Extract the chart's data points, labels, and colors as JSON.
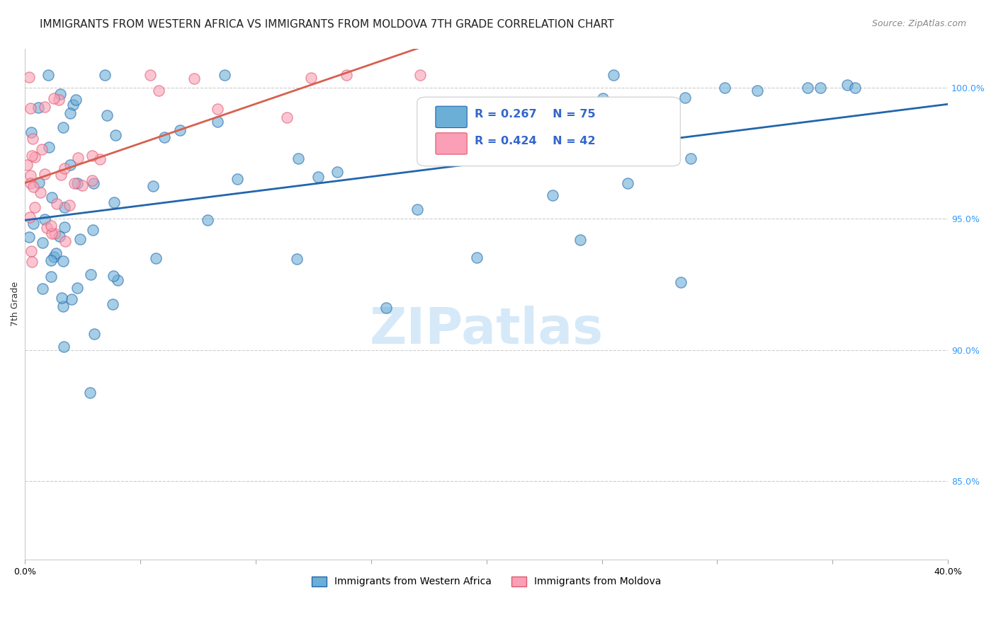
{
  "title": "IMMIGRANTS FROM WESTERN AFRICA VS IMMIGRANTS FROM MOLDOVA 7TH GRADE CORRELATION CHART",
  "source": "Source: ZipAtlas.com",
  "ylabel": "7th Grade",
  "xlabel_blue": "Immigrants from Western Africa",
  "xlabel_pink": "Immigrants from Moldova",
  "legend_blue_r": "R = 0.267",
  "legend_blue_n": "N = 75",
  "legend_pink_r": "R = 0.424",
  "legend_pink_n": "N = 42",
  "color_blue": "#6baed6",
  "color_pink": "#fa9fb5",
  "line_blue": "#2166ac",
  "line_pink": "#d6604d",
  "xmin": 0.0,
  "xmax": 0.4,
  "ymin": 0.82,
  "ymax": 1.015,
  "yticks": [
    0.85,
    0.9,
    0.95,
    1.0
  ],
  "ytick_labels": [
    "85.0%",
    "90.0%",
    "95.0%",
    "100.0%"
  ],
  "xticks": [
    0.0,
    0.05,
    0.1,
    0.15,
    0.2,
    0.25,
    0.3,
    0.35,
    0.4
  ],
  "xtick_labels": [
    "0.0%",
    "",
    "",
    "",
    "",
    "",
    "",
    "",
    "40.0%"
  ],
  "watermark": "ZIPatlas",
  "title_fontsize": 11,
  "axis_label_fontsize": 9,
  "tick_fontsize": 9
}
